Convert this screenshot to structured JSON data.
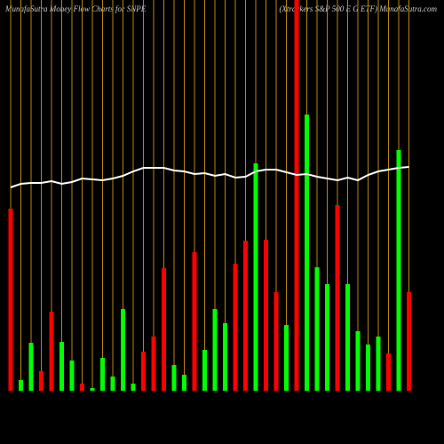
{
  "chart_data": {
    "type": "bar",
    "title": "MunafaSutra  Money Flow  Charts for SNPE",
    "subtitle": "(Xtrackers S&P 500   E  G ETF) MunafaSutra.com",
    "categories": [
      null,
      null,
      null,
      null,
      null,
      null,
      null,
      null,
      null,
      null,
      null,
      null,
      null,
      null,
      null,
      null,
      null,
      null,
      null,
      null,
      null,
      null,
      null,
      null,
      null,
      null,
      null,
      null,
      null,
      null,
      null,
      null,
      null,
      null,
      null,
      null,
      null,
      null,
      null,
      null
    ],
    "values": [
      205,
      12,
      54,
      22,
      89,
      55,
      34,
      8,
      3,
      37,
      16,
      92,
      8,
      44,
      61,
      138,
      29,
      18,
      156,
      46,
      92,
      76,
      143,
      169,
      256,
      170,
      111,
      74,
      450,
      311,
      139,
      120,
      209,
      120,
      67,
      52,
      61,
      42,
      271,
      111
    ],
    "bar_colors": [
      "#ff0000",
      "#00ff00",
      "#00ff00",
      "#ff0000",
      "#ff0000",
      "#00ff00",
      "#00ff00",
      "#ff0000",
      "#00ff00",
      "#00ff00",
      "#00ff00",
      "#00ff00",
      "#00ff00",
      "#ff0000",
      "#ff0000",
      "#ff0000",
      "#00ff00",
      "#00ff00",
      "#ff0000",
      "#00ff00",
      "#00ff00",
      "#00ff00",
      "#ff0000",
      "#ff0000",
      "#00ff00",
      "#ff0000",
      "#ff0000",
      "#00ff00",
      "#ff0000",
      "#00ff00",
      "#00ff00",
      "#00ff00",
      "#ff0000",
      "#00ff00",
      "#00ff00",
      "#00ff00",
      "#00ff00",
      "#ff0000",
      "#00ff00",
      "#ff0000"
    ],
    "line_values": [
      229,
      233,
      234,
      234,
      236,
      233,
      235,
      239,
      238,
      237,
      239,
      242,
      247,
      251,
      251,
      251,
      248,
      247,
      244,
      245,
      242,
      244,
      240,
      241,
      247,
      249,
      249,
      246,
      243,
      244,
      241,
      239,
      237,
      240,
      237,
      243,
      247,
      249,
      251,
      252
    ],
    "line_color": "#ffffff",
    "grid_color": "#b8860b",
    "ylim": [
      0,
      430
    ],
    "grid": true
  }
}
